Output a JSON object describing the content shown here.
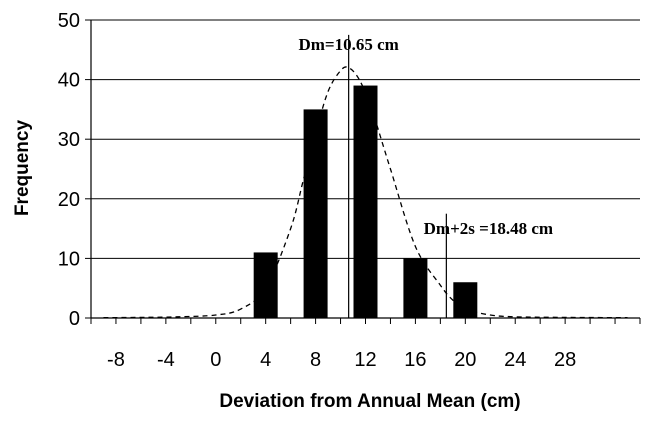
{
  "chart_data": {
    "type": "bar",
    "title": "",
    "xlabel": "Deviation from Annual Mean  (cm)",
    "ylabel": "Frequency",
    "xlim": [
      -10,
      34
    ],
    "ylim": [
      0,
      50
    ],
    "x_ticks": [
      -8,
      -4,
      0,
      4,
      8,
      12,
      16,
      20,
      24,
      28
    ],
    "y_ticks": [
      0,
      10,
      20,
      30,
      40,
      50
    ],
    "grid": "horizontal",
    "bars": [
      {
        "x": 4,
        "value": 11
      },
      {
        "x": 8,
        "value": 35
      },
      {
        "x": 12,
        "value": 39
      },
      {
        "x": 16,
        "value": 10
      },
      {
        "x": 20,
        "value": 6
      }
    ],
    "fitted_curve": {
      "style": "dashed",
      "points": [
        [
          -9,
          0.05
        ],
        [
          -6,
          0.1
        ],
        [
          -3,
          0.2
        ],
        [
          0,
          0.5
        ],
        [
          2,
          1.5
        ],
        [
          4,
          5
        ],
        [
          6,
          15
        ],
        [
          7,
          23
        ],
        [
          8,
          31
        ],
        [
          9,
          38
        ],
        [
          10,
          41.5
        ],
        [
          10.65,
          42
        ],
        [
          11.5,
          40
        ],
        [
          12.5,
          35
        ],
        [
          14,
          25
        ],
        [
          16,
          12
        ],
        [
          18,
          5.5
        ],
        [
          19,
          3
        ],
        [
          20,
          1.5
        ],
        [
          22,
          0.5
        ],
        [
          24,
          0.2
        ],
        [
          28,
          0.1
        ],
        [
          33,
          0.05
        ]
      ]
    },
    "reference_lines": [
      {
        "x": 10.65,
        "label": "Dm=10.65 cm"
      },
      {
        "x": 18.48,
        "label": "Dm+2s =18.48 cm"
      }
    ]
  }
}
